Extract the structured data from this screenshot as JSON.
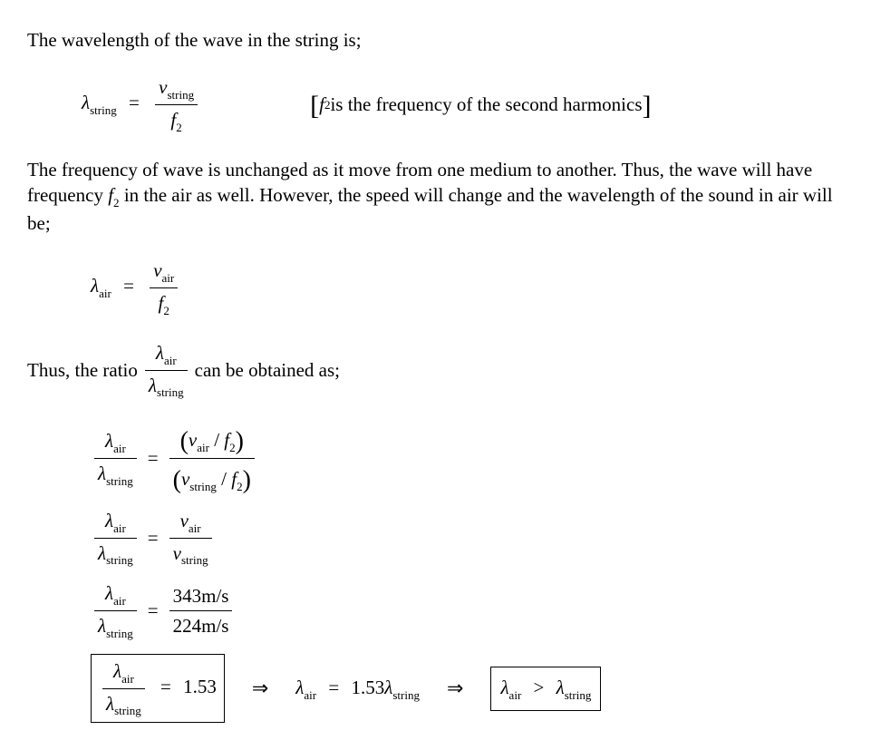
{
  "p1": "The wavelength of the wave in the string is;",
  "sym": {
    "lambda": "λ",
    "v": "v",
    "f": "f",
    "eq": "=",
    "gt": ">",
    "slash": "/",
    "imply": "⇒"
  },
  "sub": {
    "string": "string",
    "air": "air",
    "two": "2"
  },
  "note_bracket_pre": "[",
  "note_bracket_post": "]",
  "note_f2": " is the frequency of the second harmonics",
  "p2a": "The frequency of wave is unchanged as it move from one medium to another. Thus, the wave will have frequency ",
  "p2b": " in the air as well. However, the speed will change and the wavelength of the sound in air will be;",
  "p3a": "Thus, the ratio ",
  "p3b": " can be obtained as;",
  "v_air_val": "343",
  "v_string_val": "224",
  "unit": "m/s",
  "ratio_val": "1.53"
}
